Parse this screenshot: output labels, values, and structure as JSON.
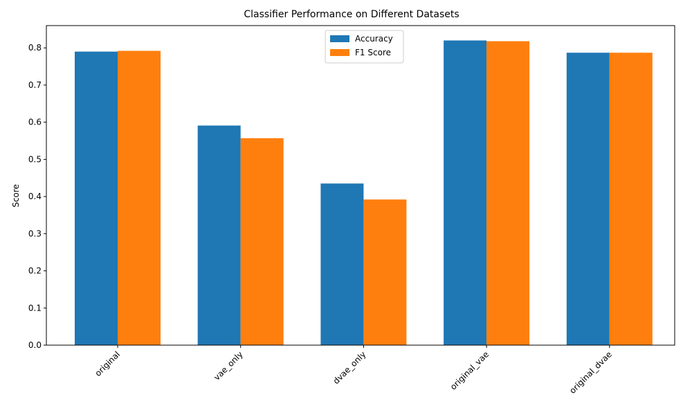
{
  "chart_data": {
    "type": "bar",
    "title": "Classifier Performance on Different Datasets",
    "xlabel": "",
    "ylabel": "Score",
    "ylim": [
      0,
      0.86
    ],
    "yticks": [
      0.0,
      0.1,
      0.2,
      0.3,
      0.4,
      0.5,
      0.6,
      0.7,
      0.8
    ],
    "ytick_labels": [
      "0.0",
      "0.1",
      "0.2",
      "0.3",
      "0.4",
      "0.5",
      "0.6",
      "0.7",
      "0.8"
    ],
    "categories": [
      "original",
      "vae_only",
      "dvae_only",
      "original_vae",
      "original_dvae"
    ],
    "series": [
      {
        "name": "Accuracy",
        "color": "#1f77b4",
        "values": [
          0.79,
          0.591,
          0.435,
          0.82,
          0.787
        ]
      },
      {
        "name": "F1 Score",
        "color": "#ff7f0e",
        "values": [
          0.792,
          0.557,
          0.392,
          0.818,
          0.787
        ]
      }
    ],
    "legend": "top-center",
    "grid": false
  }
}
